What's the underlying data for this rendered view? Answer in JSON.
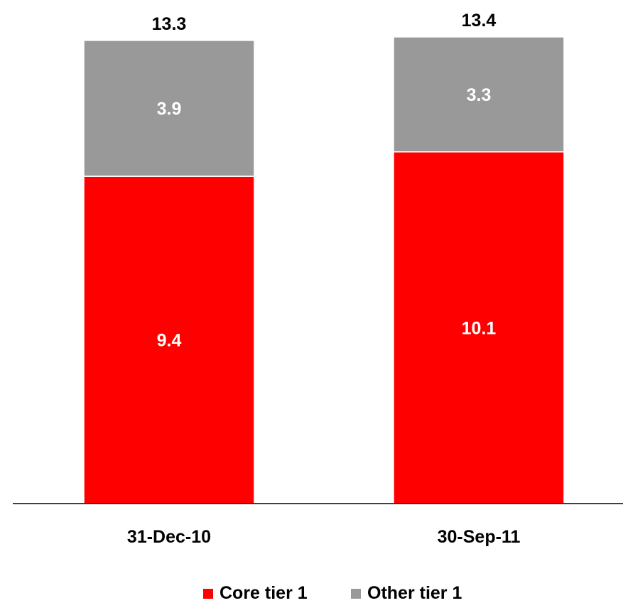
{
  "chart_data": {
    "type": "bar",
    "stacked": true,
    "categories": [
      "31-Dec-10",
      "30-Sep-11"
    ],
    "series": [
      {
        "name": "Core tier 1",
        "values": [
          9.4,
          10.1
        ],
        "labels": [
          "9.4",
          "10.1"
        ],
        "color": "#ff0000"
      },
      {
        "name": "Other tier 1",
        "values": [
          3.9,
          3.3
        ],
        "labels": [
          "3.9",
          "3.3"
        ],
        "color": "#999999"
      }
    ],
    "totals": [
      13.3,
      13.4
    ],
    "total_labels": [
      "13.3",
      "13.4"
    ],
    "ylim": [
      0,
      13.4
    ],
    "grid": false,
    "legend_position": "bottom",
    "title": "",
    "xlabel": "",
    "ylabel": ""
  }
}
